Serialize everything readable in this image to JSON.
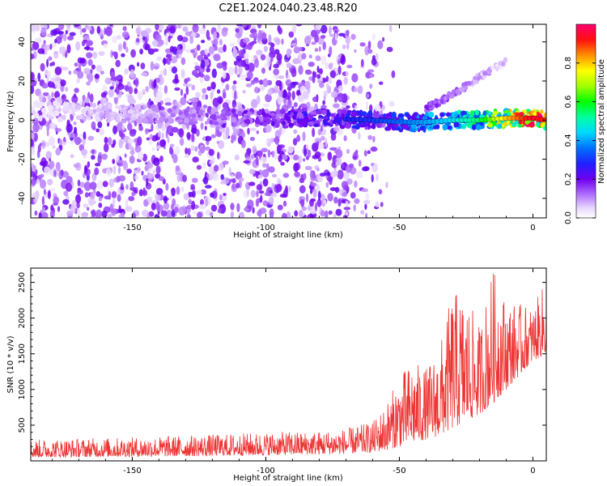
{
  "title": "C2E1.2024.040.23.48.R20",
  "chart_data": [
    {
      "type": "heatmap",
      "xlabel": "Height of straight line (km)",
      "ylabel": "Frequency (Hz)",
      "xlim": [
        -188,
        5
      ],
      "ylim": [
        -50,
        49
      ],
      "xticks": [
        -150,
        -100,
        -50,
        0
      ],
      "yticks": [
        -40,
        -20,
        0,
        20,
        40
      ],
      "colorbar": {
        "label": "Normalized spectral amplitude",
        "range": [
          0.0,
          1.0
        ],
        "ticks": [
          0.0,
          0.2,
          0.4,
          0.6,
          0.8
        ]
      },
      "main_track": {
        "x": [
          -188,
          -150,
          -120,
          -100,
          -80,
          -60,
          -50,
          -40,
          -30,
          -20,
          -10,
          0,
          5
        ],
        "frequency": [
          5,
          3,
          2,
          1,
          1,
          0,
          -1,
          -1,
          0,
          0,
          1,
          1,
          0
        ],
        "amplitude": [
          0.05,
          0.1,
          0.15,
          0.2,
          0.25,
          0.3,
          0.35,
          0.4,
          0.45,
          0.55,
          0.8,
          0.95,
          0.9
        ]
      },
      "branch_track": {
        "x": [
          -40,
          -30,
          -20,
          -10
        ],
        "frequency": [
          6,
          13,
          22,
          30
        ],
        "amplitude": [
          0.15,
          0.12,
          0.08,
          0.05
        ]
      }
    },
    {
      "type": "line",
      "xlabel": "Height of straight line (km)",
      "ylabel": "SNR (10 * v/v)",
      "xlim": [
        -188,
        5
      ],
      "ylim": [
        0,
        2700
      ],
      "xticks": [
        -150,
        -100,
        -50,
        0
      ],
      "yticks": [
        500,
        1000,
        1500,
        2000,
        2500
      ],
      "color": "#ee3333",
      "envelope": {
        "x": [
          -188,
          -150,
          -120,
          -100,
          -80,
          -70,
          -60,
          -55,
          -50,
          -45,
          -40,
          -35,
          -30,
          -25,
          -20,
          -15,
          -10,
          -5,
          0,
          5
        ],
        "low": [
          50,
          60,
          70,
          80,
          90,
          100,
          120,
          150,
          200,
          250,
          300,
          350,
          450,
          550,
          650,
          800,
          1000,
          1200,
          1400,
          1500
        ],
        "high": [
          300,
          330,
          370,
          400,
          420,
          450,
          550,
          800,
          1200,
          1400,
          1300,
          1600,
          2400,
          2300,
          1900,
          2700,
          2250,
          2200,
          2150,
          2550
        ]
      }
    }
  ]
}
